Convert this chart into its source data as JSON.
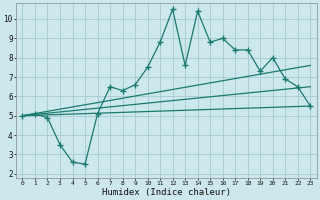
{
  "xlabel": "Humidex (Indice chaleur)",
  "bg_color": "#cce8ec",
  "grid_color": "#aacdd4",
  "line_color": "#1a7a6e",
  "xlim": [
    -0.5,
    23.5
  ],
  "ylim": [
    1.8,
    10.8
  ],
  "yticks": [
    2,
    3,
    4,
    5,
    6,
    7,
    8,
    9,
    10
  ],
  "xticks": [
    0,
    1,
    2,
    3,
    4,
    5,
    6,
    7,
    8,
    9,
    10,
    11,
    12,
    13,
    14,
    15,
    16,
    17,
    18,
    19,
    20,
    21,
    22,
    23
  ],
  "main_x": [
    0,
    1,
    2,
    3,
    4,
    5,
    6,
    7,
    8,
    9,
    10,
    11,
    12,
    13,
    14,
    15,
    16,
    17,
    18,
    19,
    20,
    21,
    22,
    23
  ],
  "main_y": [
    5.0,
    5.1,
    4.9,
    3.5,
    2.6,
    2.5,
    5.1,
    6.5,
    6.3,
    6.6,
    7.5,
    8.8,
    10.5,
    7.6,
    10.4,
    8.8,
    9.0,
    8.4,
    8.4,
    7.3,
    8.0,
    6.9,
    6.5,
    5.5
  ],
  "diag_lines": [
    {
      "x": [
        0,
        23
      ],
      "y": [
        5.0,
        5.5
      ]
    },
    {
      "x": [
        0,
        23
      ],
      "y": [
        5.0,
        6.5
      ]
    },
    {
      "x": [
        0,
        23
      ],
      "y": [
        5.0,
        7.6
      ]
    }
  ]
}
